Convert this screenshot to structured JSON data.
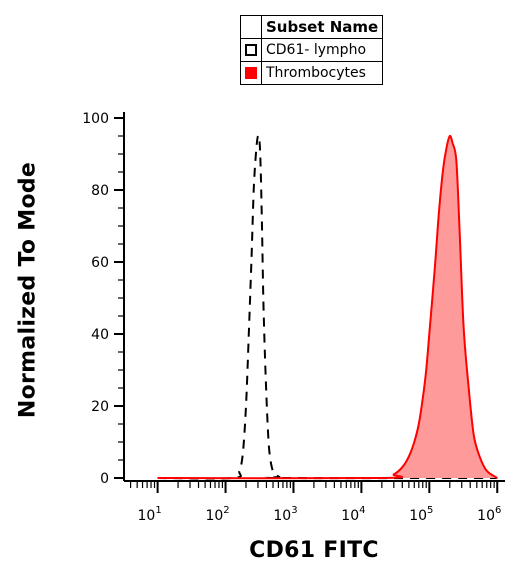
{
  "chart_data": {
    "type": "area",
    "title": "",
    "xlabel": "CD61 FITC",
    "ylabel": "Normalized To Mode",
    "x_scale": "log",
    "xlim": [
      3.2,
      1300000
    ],
    "ylim": [
      0,
      100
    ],
    "x_tick_labels": [
      {
        "base": "10",
        "exp": "1",
        "value": 10
      },
      {
        "base": "10",
        "exp": "2",
        "value": 100
      },
      {
        "base": "10",
        "exp": "3",
        "value": 1000
      },
      {
        "base": "10",
        "exp": "4",
        "value": 10000
      },
      {
        "base": "10",
        "exp": "5",
        "value": 100000
      },
      {
        "base": "10",
        "exp": "6",
        "value": 1000000
      }
    ],
    "y_ticks": [
      0,
      20,
      40,
      60,
      80,
      100
    ],
    "grid": false,
    "legend": {
      "placement": "top",
      "header": "Subset Name",
      "entries": [
        "CD61- lympho",
        "Thrombocytes"
      ]
    },
    "series": [
      {
        "name": "CD61- lympho",
        "style": "dashed",
        "color": "#000000",
        "x": [
          10,
          130,
          160,
          180,
          200,
          220,
          240,
          260,
          280,
          300,
          320,
          340,
          360,
          390,
          430,
          480,
          550,
          620,
          700,
          1000000
        ],
        "y": [
          0,
          0,
          2,
          7,
          20,
          40,
          60,
          80,
          90,
          95,
          92,
          75,
          50,
          28,
          10,
          3,
          1,
          0.3,
          0,
          0
        ]
      },
      {
        "name": "Thrombocytes",
        "style": "filled",
        "color": "#ff0000",
        "fill": "#ff9a9a",
        "x": [
          10,
          20000,
          30000,
          40000,
          50000,
          60000,
          70000,
          80000,
          90000,
          100000,
          120000,
          140000,
          160000,
          180000,
          200000,
          220000,
          250000,
          280000,
          320000,
          380000,
          450000,
          550000,
          700000,
          1000000
        ],
        "y": [
          0,
          0,
          1,
          3,
          6,
          10,
          15,
          22,
          30,
          40,
          58,
          75,
          86,
          92,
          95,
          93,
          88,
          68,
          42,
          25,
          12,
          6,
          2,
          0
        ]
      }
    ]
  }
}
